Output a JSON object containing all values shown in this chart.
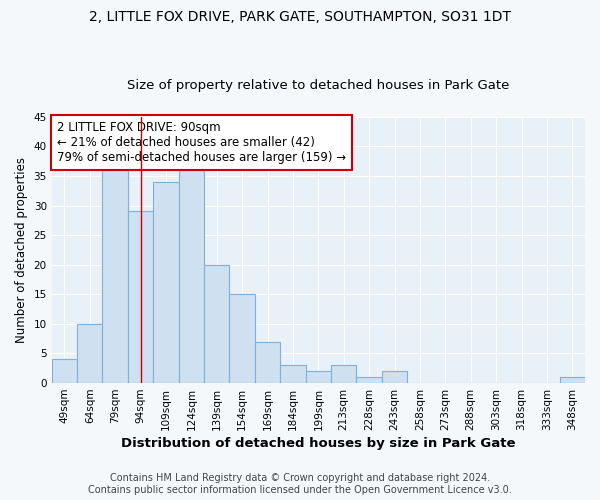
{
  "title": "2, LITTLE FOX DRIVE, PARK GATE, SOUTHAMPTON, SO31 1DT",
  "subtitle": "Size of property relative to detached houses in Park Gate",
  "xlabel": "Distribution of detached houses by size in Park Gate",
  "ylabel": "Number of detached properties",
  "bar_labels": [
    "49sqm",
    "64sqm",
    "79sqm",
    "94sqm",
    "109sqm",
    "124sqm",
    "139sqm",
    "154sqm",
    "169sqm",
    "184sqm",
    "199sqm",
    "213sqm",
    "228sqm",
    "243sqm",
    "258sqm",
    "273sqm",
    "288sqm",
    "303sqm",
    "318sqm",
    "333sqm",
    "348sqm"
  ],
  "bar_values": [
    4,
    10,
    36,
    29,
    34,
    36,
    20,
    15,
    7,
    3,
    2,
    3,
    1,
    2,
    0,
    0,
    0,
    0,
    0,
    0,
    1
  ],
  "bar_color": "#cfe0f0",
  "bar_edge_color": "#7fb0d8",
  "red_line_x": 3.0,
  "annotation_text": "2 LITTLE FOX DRIVE: 90sqm\n← 21% of detached houses are smaller (42)\n79% of semi-detached houses are larger (159) →",
  "annotation_box_color": "#ffffff",
  "annotation_box_edge_color": "#cc0000",
  "ylim": [
    0,
    45
  ],
  "yticks": [
    0,
    5,
    10,
    15,
    20,
    25,
    30,
    35,
    40,
    45
  ],
  "footer_text": "Contains HM Land Registry data © Crown copyright and database right 2024.\nContains public sector information licensed under the Open Government Licence v3.0.",
  "bg_color": "#f5f8fb",
  "plot_bg_color": "#e8f0f8",
  "grid_color": "#ffffff",
  "title_fontsize": 10,
  "subtitle_fontsize": 9.5,
  "tick_fontsize": 7.5,
  "ylabel_fontsize": 8.5,
  "xlabel_fontsize": 9.5,
  "footer_fontsize": 7,
  "annotation_fontsize": 8.5
}
